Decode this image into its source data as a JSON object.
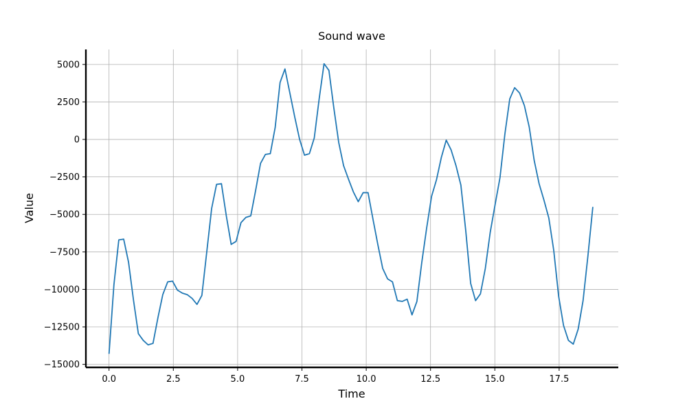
{
  "chart_data": {
    "type": "line",
    "title": "Sound wave",
    "xlabel": "Time",
    "ylabel": "Value",
    "xlim": [
      -0.9,
      19.8
    ],
    "ylim": [
      -15200,
      6000
    ],
    "grid": true,
    "xticks": [
      0.0,
      2.5,
      5.0,
      7.5,
      10.0,
      12.5,
      15.0,
      17.5
    ],
    "xtick_labels": [
      "0.0",
      "2.5",
      "5.0",
      "7.5",
      "10.0",
      "12.5",
      "15.0",
      "17.5"
    ],
    "yticks": [
      5000,
      2500,
      0,
      -2500,
      -5000,
      -7500,
      -10000,
      -12500,
      -15000
    ],
    "ytick_labels": [
      "5000",
      "2500",
      "0",
      "−2500",
      "−5000",
      "−7500",
      "−10000",
      "−12500",
      "−15000"
    ],
    "color": "#1f77b4",
    "series": [
      {
        "x": [
          0.0,
          0.19,
          0.38,
          0.57,
          0.76,
          0.95,
          1.14,
          1.33,
          1.52,
          1.71,
          1.9,
          2.09,
          2.28,
          2.47,
          2.66,
          2.85,
          3.04,
          3.23,
          3.42,
          3.61,
          3.8,
          3.99,
          4.18,
          4.37,
          4.56,
          4.75,
          4.94,
          5.13,
          5.32,
          5.51,
          5.7,
          5.89,
          6.08,
          6.27,
          6.46,
          6.65,
          6.84,
          7.03,
          7.22,
          7.41,
          7.6,
          7.79,
          7.98,
          8.17,
          8.36,
          8.55,
          8.74,
          8.93,
          9.12,
          9.31,
          9.5,
          9.69,
          9.88,
          10.07,
          10.26,
          10.45,
          10.64,
          10.83,
          11.02,
          11.21,
          11.4,
          11.59,
          11.78,
          11.97,
          12.16,
          12.35,
          12.54,
          12.73,
          12.92,
          13.11,
          13.3,
          13.49,
          13.68,
          13.87,
          14.06,
          14.25,
          14.44,
          14.63,
          14.82,
          15.01,
          15.2,
          15.39,
          15.58,
          15.77,
          15.96,
          16.15,
          16.34,
          16.53,
          16.72,
          16.91,
          17.1,
          17.29,
          17.48,
          17.67,
          17.86,
          18.05,
          18.24,
          18.43,
          18.62,
          18.81
        ],
        "y": [
          -14300,
          -9700,
          -6700,
          -6650,
          -8200,
          -10700,
          -12950,
          -13400,
          -13700,
          -13600,
          -11900,
          -10350,
          -9500,
          -9450,
          -10050,
          -10250,
          -10350,
          -10600,
          -11000,
          -10400,
          -7500,
          -4600,
          -3000,
          -2950,
          -5100,
          -7000,
          -6800,
          -5550,
          -5200,
          -5100,
          -3400,
          -1600,
          -1000,
          -950,
          800,
          3800,
          4700,
          3100,
          1500,
          0,
          -1050,
          -950,
          100,
          2700,
          5050,
          4600,
          2100,
          -200,
          -1750,
          -2650,
          -3500,
          -4150,
          -3550,
          -3550,
          -5300,
          -7000,
          -8600,
          -9300,
          -9500,
          -10750,
          -10800,
          -10650,
          -11700,
          -10800,
          -8200,
          -5900,
          -3800,
          -2700,
          -1200,
          -50,
          -700,
          -1750,
          -3050,
          -6100,
          -9600,
          -10750,
          -10300,
          -8600,
          -6200,
          -4350,
          -2550,
          350,
          2700,
          3450,
          3100,
          2250,
          800,
          -1400,
          -2950,
          -4050,
          -5250,
          -7400,
          -10450,
          -12400,
          -13400,
          -13650,
          -12650,
          -10750,
          -7750,
          -4500
        ]
      }
    ]
  }
}
